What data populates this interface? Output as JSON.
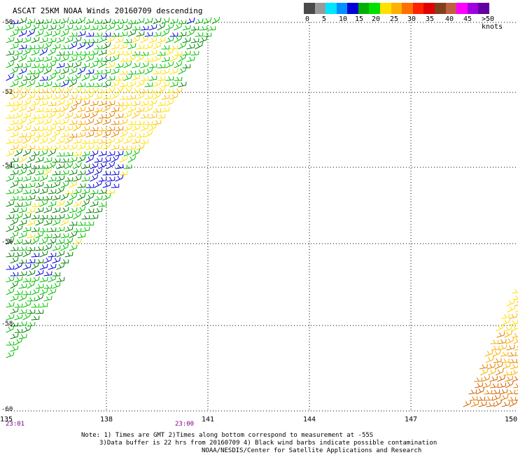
{
  "title": "ASCAT 25KM NOAA Winds 20160709 descending",
  "colorbar": {
    "colors": [
      "#4a4a4a",
      "#9a9a9a",
      "#00e5ff",
      "#0090ff",
      "#0000d8",
      "#00b000",
      "#00e000",
      "#ffe000",
      "#ffb000",
      "#ff7000",
      "#ff2000",
      "#e00000",
      "#804020",
      "#c06040",
      "#ff00ff",
      "#a000e0",
      "#6000a0"
    ],
    "labels": [
      "0",
      "5",
      "10",
      "15",
      "20",
      "25",
      "30",
      "35",
      "40",
      "45",
      ">50 knots"
    ]
  },
  "map": {
    "lon_ticks": [
      "135",
      "138",
      "141",
      "144",
      "147",
      "150"
    ],
    "lat_ticks": [
      "-50",
      "-52",
      "-54",
      "-56",
      "-58",
      "-60"
    ],
    "time_labels": [
      "23:01",
      "23:00"
    ]
  },
  "notes": [
    "Note: 1) Times are GMT 2)Times along bottom correspond to measurement at -55S",
    "3)Data buffer is 22 hrs from 20160709 4) Black wind barbs indicate possible contamination",
    "NOAA/NESDIS/Center for Satellite Applications and Research"
  ]
}
